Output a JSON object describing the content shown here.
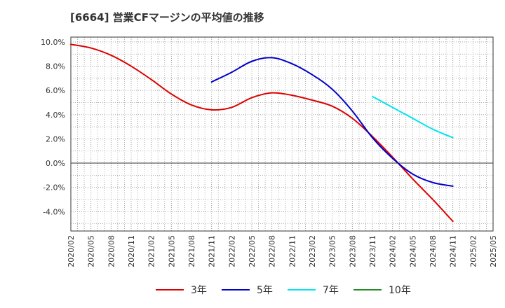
{
  "chart_data": {
    "type": "line",
    "title": "[6664]  営業CFマージンの平均値の推移",
    "xlabel": "",
    "ylabel": "",
    "x": [
      "2020/02",
      "2020/05",
      "2020/08",
      "2020/11",
      "2021/02",
      "2021/05",
      "2021/08",
      "2021/11",
      "2022/02",
      "2022/05",
      "2022/08",
      "2022/11",
      "2023/02",
      "2023/05",
      "2023/08",
      "2023/11",
      "2024/02",
      "2024/05",
      "2024/08",
      "2024/11",
      "2025/02",
      "2025/05"
    ],
    "ylim": [
      -5.6,
      10.4
    ],
    "yticks": [
      -4.0,
      -2.0,
      0.0,
      2.0,
      4.0,
      6.0,
      8.0,
      10.0
    ],
    "ytick_labels": [
      "-4.0%",
      "-2.0%",
      "0.0%",
      "2.0%",
      "4.0%",
      "6.0%",
      "8.0%",
      "10.0%"
    ],
    "grid": true,
    "legend_position": "bottom",
    "series": [
      {
        "name": "3年",
        "color": "#dd0000",
        "values": [
          9.8,
          9.5,
          8.9,
          8.0,
          6.9,
          5.7,
          4.8,
          4.4,
          4.6,
          5.4,
          5.8,
          5.6,
          5.2,
          4.7,
          3.7,
          2.2,
          0.5,
          -1.3,
          -3.0,
          -4.8,
          null,
          null
        ]
      },
      {
        "name": "5年",
        "color": "#0000cc",
        "values": [
          null,
          null,
          null,
          null,
          null,
          null,
          null,
          6.7,
          7.5,
          8.4,
          8.7,
          8.2,
          7.3,
          6.1,
          4.3,
          2.1,
          0.4,
          -0.9,
          -1.6,
          -1.9,
          null,
          null
        ]
      },
      {
        "name": "7年",
        "color": "#00e5ee",
        "values": [
          null,
          null,
          null,
          null,
          null,
          null,
          null,
          null,
          null,
          null,
          null,
          null,
          null,
          null,
          null,
          5.5,
          4.6,
          3.7,
          2.8,
          2.1,
          null,
          null
        ]
      },
      {
        "name": "10年",
        "color": "#228b22",
        "values": [
          null,
          null,
          null,
          null,
          null,
          null,
          null,
          null,
          null,
          null,
          null,
          null,
          null,
          null,
          null,
          null,
          null,
          null,
          null,
          null,
          null,
          null
        ]
      }
    ]
  }
}
